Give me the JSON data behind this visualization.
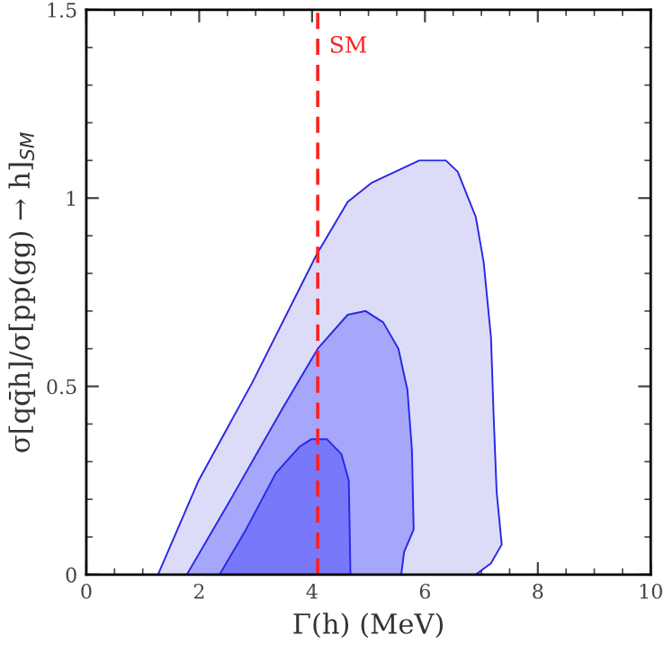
{
  "chart_data": {
    "type": "area",
    "xlabel": "Γ(h) (MeV)",
    "ylabel": "σ[qq̄h]/σ[pp(gg) → h]$_{SM}$",
    "xlim": [
      0,
      10
    ],
    "ylim": [
      0,
      1.5
    ],
    "xticks": [
      0,
      2,
      4,
      6,
      8,
      10
    ],
    "yticks": [
      0,
      0.5,
      1,
      1.5
    ],
    "grid": false,
    "series": [
      {
        "color": "#dcdcf9",
        "x": [
          1.27,
          1.99,
          2.94,
          4.08,
          4.63,
          5.05,
          5.9,
          6.37,
          6.58,
          6.9,
          7.04,
          7.17,
          7.22,
          7.27,
          7.36,
          7.17,
          6.9
        ],
        "values": [
          0,
          0.25,
          0.51,
          0.85,
          0.99,
          1.04,
          1.1,
          1.1,
          1.07,
          0.95,
          0.83,
          0.63,
          0.41,
          0.22,
          0.08,
          0.03,
          0
        ]
      },
      {
        "color": "#a6a6fa",
        "x": [
          1.78,
          2.52,
          3.47,
          4.1,
          4.63,
          4.95,
          5.26,
          5.53,
          5.69,
          5.77,
          5.8,
          5.63,
          5.58
        ],
        "values": [
          0,
          0.19,
          0.44,
          0.6,
          0.69,
          0.7,
          0.67,
          0.6,
          0.49,
          0.33,
          0.12,
          0.06,
          0
        ]
      },
      {
        "color": "#7878fb",
        "x": [
          2.36,
          2.83,
          3.36,
          3.78,
          3.99,
          4.26,
          4.52,
          4.65,
          4.68
        ],
        "values": [
          0,
          0.12,
          0.27,
          0.34,
          0.36,
          0.36,
          0.32,
          0.25,
          0
        ]
      }
    ],
    "ref_lines": [
      {
        "axis": "x",
        "value": 4.1,
        "label": "SM",
        "color": "#ff2020",
        "line_style": "dashed"
      }
    ]
  }
}
